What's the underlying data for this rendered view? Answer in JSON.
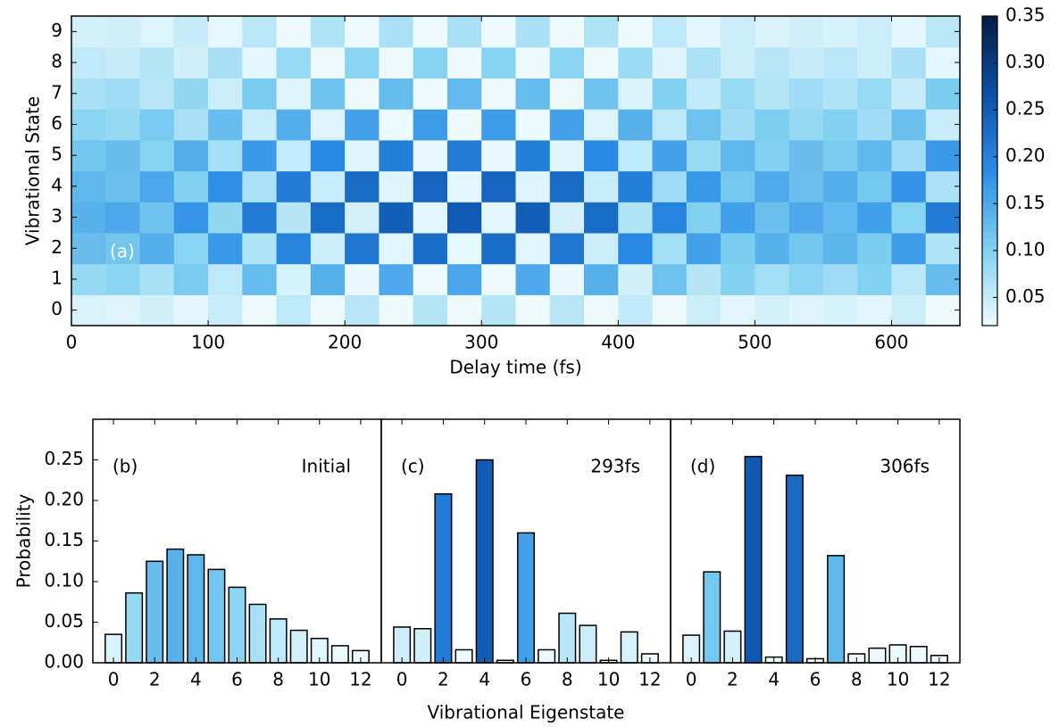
{
  "chart_data": [
    {
      "type": "heatmap",
      "xlabel": "Delay time (fs)",
      "ylabel": "Vibrational State",
      "annotation": "(a)",
      "x": [
        12.5,
        37.5,
        62.5,
        87.5,
        112.5,
        137.5,
        162.5,
        187.5,
        212.5,
        237.5,
        262.5,
        287.5,
        312.5,
        337.5,
        362.5,
        387.5,
        412.5,
        437.5,
        462.5,
        487.5,
        512.5,
        537.5,
        562.5,
        587.5,
        612.5,
        637.5
      ],
      "y": [
        0,
        1,
        2,
        3,
        4,
        5,
        6,
        7,
        8,
        9
      ],
      "z": [
        [
          0.035,
          0.032,
          0.041,
          0.027,
          0.048,
          0.018,
          0.055,
          0.013,
          0.06,
          0.008,
          0.063,
          0.007,
          0.063,
          0.008,
          0.06,
          0.013,
          0.053,
          0.021,
          0.045,
          0.029,
          0.039,
          0.032,
          0.038,
          0.029,
          0.046,
          0.018
        ],
        [
          0.086,
          0.093,
          0.072,
          0.107,
          0.055,
          0.127,
          0.038,
          0.141,
          0.024,
          0.151,
          0.017,
          0.155,
          0.017,
          0.151,
          0.024,
          0.141,
          0.041,
          0.12,
          0.062,
          0.1,
          0.076,
          0.093,
          0.079,
          0.1,
          0.058,
          0.127
        ],
        [
          0.125,
          0.115,
          0.145,
          0.095,
          0.17,
          0.065,
          0.195,
          0.045,
          0.215,
          0.03,
          0.225,
          0.025,
          0.225,
          0.03,
          0.215,
          0.045,
          0.19,
          0.075,
          0.16,
          0.105,
          0.14,
          0.115,
          0.135,
          0.105,
          0.165,
          0.065
        ],
        [
          0.14,
          0.151,
          0.118,
          0.174,
          0.09,
          0.207,
          0.062,
          0.23,
          0.039,
          0.246,
          0.028,
          0.252,
          0.028,
          0.246,
          0.039,
          0.23,
          0.067,
          0.196,
          0.101,
          0.162,
          0.123,
          0.151,
          0.129,
          0.162,
          0.095,
          0.207
        ],
        [
          0.133,
          0.122,
          0.154,
          0.101,
          0.181,
          0.069,
          0.207,
          0.048,
          0.229,
          0.032,
          0.239,
          0.027,
          0.239,
          0.032,
          0.229,
          0.048,
          0.202,
          0.08,
          0.17,
          0.112,
          0.149,
          0.122,
          0.144,
          0.112,
          0.176,
          0.069
        ],
        [
          0.115,
          0.124,
          0.097,
          0.143,
          0.074,
          0.17,
          0.051,
          0.189,
          0.032,
          0.202,
          0.023,
          0.207,
          0.023,
          0.202,
          0.032,
          0.189,
          0.055,
          0.161,
          0.083,
          0.133,
          0.101,
          0.124,
          0.106,
          0.133,
          0.078,
          0.17
        ],
        [
          0.093,
          0.086,
          0.108,
          0.071,
          0.126,
          0.048,
          0.145,
          0.033,
          0.16,
          0.022,
          0.167,
          0.019,
          0.167,
          0.022,
          0.16,
          0.033,
          0.141,
          0.056,
          0.119,
          0.078,
          0.104,
          0.086,
          0.1,
          0.078,
          0.123,
          0.048
        ],
        [
          0.072,
          0.078,
          0.06,
          0.089,
          0.046,
          0.107,
          0.032,
          0.118,
          0.02,
          0.127,
          0.014,
          0.13,
          0.014,
          0.127,
          0.02,
          0.118,
          0.035,
          0.101,
          0.052,
          0.084,
          0.063,
          0.078,
          0.066,
          0.084,
          0.049,
          0.107
        ],
        [
          0.054,
          0.05,
          0.063,
          0.041,
          0.073,
          0.028,
          0.084,
          0.019,
          0.093,
          0.013,
          0.097,
          0.011,
          0.097,
          0.013,
          0.093,
          0.019,
          0.082,
          0.032,
          0.069,
          0.045,
          0.06,
          0.05,
          0.058,
          0.045,
          0.071,
          0.028
        ],
        [
          0.04,
          0.043,
          0.034,
          0.05,
          0.026,
          0.059,
          0.018,
          0.066,
          0.011,
          0.07,
          0.008,
          0.072,
          0.008,
          0.07,
          0.011,
          0.066,
          0.019,
          0.056,
          0.029,
          0.046,
          0.035,
          0.043,
          0.037,
          0.046,
          0.027,
          0.059
        ]
      ],
      "xlim": [
        0,
        650
      ],
      "xticks": [
        0,
        100,
        200,
        300,
        400,
        500,
        600
      ],
      "ylim": [
        -0.5,
        9.5
      ],
      "yticks": [
        0,
        1,
        2,
        3,
        4,
        5,
        6,
        7,
        8,
        9
      ],
      "zlim": [
        0.02,
        0.35
      ],
      "zticks": [
        0.05,
        {
          "value": 0.1,
          "label": "0.10"
        },
        0.15,
        {
          "value": 0.2,
          "label": "0.20"
        },
        0.25,
        {
          "value": 0.3,
          "label": "0.30"
        },
        0.35
      ],
      "colorscale": [
        "#eefbfe",
        "#7fd0f0",
        "#2b8ce6",
        "#0b4fa8",
        "#061c44"
      ]
    },
    {
      "type": "bar",
      "label": "(b)",
      "title": "Initial",
      "ylabel": "Probability",
      "x": [
        0,
        1,
        2,
        3,
        4,
        5,
        6,
        7,
        8,
        9,
        10,
        11,
        12
      ],
      "values": [
        0.035,
        0.086,
        0.125,
        0.14,
        0.133,
        0.115,
        0.093,
        0.072,
        0.054,
        0.04,
        0.03,
        0.021,
        0.015
      ],
      "xlim": [
        -1,
        13
      ],
      "xticks": [
        0,
        2,
        4,
        6,
        8,
        10,
        12
      ],
      "ylim": [
        0,
        0.3
      ],
      "yticks": [
        {
          "value": 0,
          "label": "0.00"
        },
        0.05,
        {
          "value": 0.1,
          "label": "0.10"
        },
        0.15,
        {
          "value": 0.2,
          "label": "0.20"
        },
        0.25
      ]
    },
    {
      "type": "bar",
      "label": "(c)",
      "title": "293fs",
      "xlabel": "Vibrational Eigenstate",
      "x": [
        0,
        1,
        2,
        3,
        4,
        5,
        6,
        7,
        8,
        9,
        10,
        11,
        12
      ],
      "values": [
        0.044,
        0.042,
        0.208,
        0.016,
        0.25,
        0.003,
        0.16,
        0.016,
        0.061,
        0.046,
        0.003,
        0.038,
        0.011
      ],
      "xlim": [
        -1,
        13
      ],
      "xticks": [
        0,
        2,
        4,
        6,
        8,
        10,
        12
      ],
      "ylim": [
        0,
        0.3
      ]
    },
    {
      "type": "bar",
      "label": "(d)",
      "title": "306fs",
      "x": [
        0,
        1,
        2,
        3,
        4,
        5,
        6,
        7,
        8,
        9,
        10,
        11,
        12
      ],
      "values": [
        0.034,
        0.112,
        0.039,
        0.254,
        0.007,
        0.231,
        0.005,
        0.132,
        0.011,
        0.018,
        0.022,
        0.02,
        0.009
      ],
      "xlim": [
        -1,
        13
      ],
      "xticks": [
        0,
        2,
        4,
        6,
        8,
        10,
        12
      ],
      "ylim": [
        0,
        0.3
      ]
    }
  ]
}
